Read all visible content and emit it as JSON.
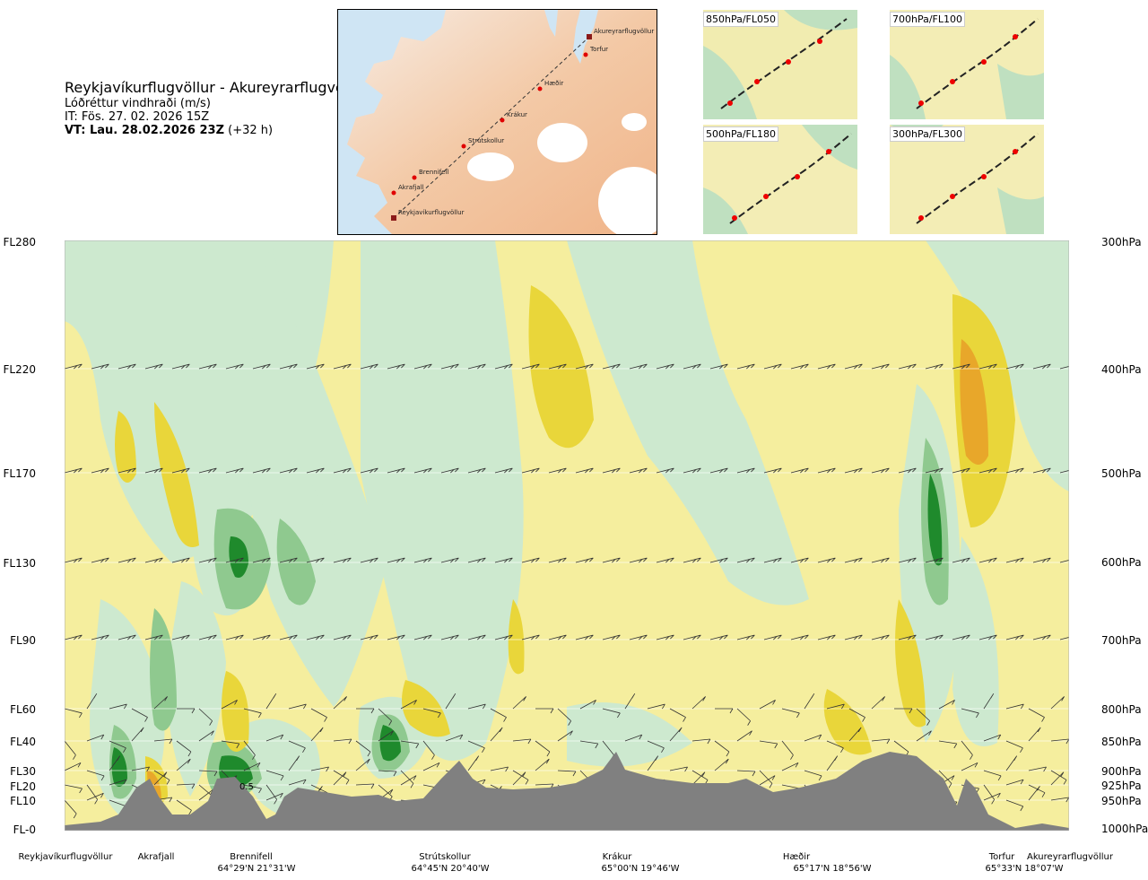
{
  "title": {
    "route": "Reykjavíkurflugvöllur - Akureyrarflugvöllur",
    "parameter": "Lóðréttur vindhraði (m/s)",
    "issue_time": "IT: Fös. 27. 02. 2026 15Z",
    "valid_time_bold": "VT: Lau. 28.02.2026 23Z",
    "valid_time_offset": " (+32 h)"
  },
  "map": {
    "waypoints": [
      {
        "name": "Akureyrarflugvöllur",
        "type": "airport"
      },
      {
        "name": "Torfur",
        "type": "point"
      },
      {
        "name": "Hæðir",
        "type": "point"
      },
      {
        "name": "Krákur",
        "type": "point"
      },
      {
        "name": "Strútskollur",
        "type": "point"
      },
      {
        "name": "Brennifell",
        "type": "point"
      },
      {
        "name": "Akrafjall",
        "type": "point"
      },
      {
        "name": "Reykjavíkurflugvöllur",
        "type": "airport"
      }
    ]
  },
  "thumbnails": [
    {
      "label": "850hPa/FL050"
    },
    {
      "label": "700hPa/FL100"
    },
    {
      "label": "500hPa/FL180"
    },
    {
      "label": "300hPa/FL300"
    }
  ],
  "levels": [
    {
      "fl": "FL280",
      "hpa": "300hPa"
    },
    {
      "fl": "FL220",
      "hpa": "400hPa"
    },
    {
      "fl": "FL170",
      "hpa": "500hPa"
    },
    {
      "fl": "FL130",
      "hpa": "600hPa"
    },
    {
      "fl": "FL90",
      "hpa": "700hPa"
    },
    {
      "fl": "FL60",
      "hpa": "800hPa"
    },
    {
      "fl": "FL40",
      "hpa": "850hPa"
    },
    {
      "fl": "FL30",
      "hpa": "900hPa"
    },
    {
      "fl": "FL20",
      "hpa": "925hPa"
    },
    {
      "fl": "FL10",
      "hpa": "950hPa"
    },
    {
      "fl": "FL-0",
      "hpa": "1000hPa"
    }
  ],
  "contour_label": "0.5",
  "route_points": [
    {
      "name": "Reykjavíkurflugvöllur",
      "coord": ""
    },
    {
      "name": "Akrafjall",
      "coord": ""
    },
    {
      "name": "Brennifell",
      "coord": "64°29'N 21°31'W"
    },
    {
      "name": "Strútskollur",
      "coord": "64°45'N 20°40'W"
    },
    {
      "name": "Krákur",
      "coord": "65°00'N 19°46'W"
    },
    {
      "name": "Hæðir",
      "coord": "65°17'N 18°56'W"
    },
    {
      "name": "Torfur",
      "coord": "65°33'N 18°07'W"
    },
    {
      "name": "Akureyrarflugvöllur",
      "coord": ""
    }
  ],
  "colors": {
    "strong_down": "#f0c000",
    "weak_down": "#f5ee9e",
    "weak_up": "#cde9cf",
    "strong_up": "#1f8a2c",
    "terrain": "#808080"
  }
}
